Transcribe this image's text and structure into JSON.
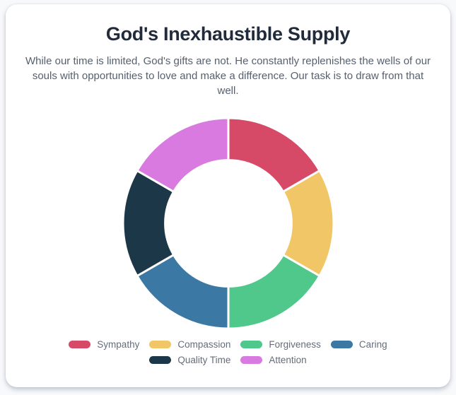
{
  "card": {
    "title": "God's Inexhaustible Supply",
    "description": "While our time is limited, God's gifts are not. He constantly replenishes the wells of our souls with opportunities to love and make a difference. Our task is to draw from that well."
  },
  "chart_data": {
    "type": "pie",
    "subtype": "doughnut",
    "labels": [
      "Sympathy",
      "Compassion",
      "Forgiveness",
      "Caring",
      "Quality Time",
      "Attention"
    ],
    "values": [
      1,
      1,
      1,
      1,
      1,
      1
    ],
    "colors": [
      "#d64a68",
      "#f1c666",
      "#51c88b",
      "#3c78a4",
      "#1c3747",
      "#d87ae0"
    ],
    "start_angle_deg": 0,
    "direction": "clockwise",
    "inner_radius_ratio": 0.6,
    "segment_border_color": "#ffffff",
    "legend_position": "bottom"
  }
}
